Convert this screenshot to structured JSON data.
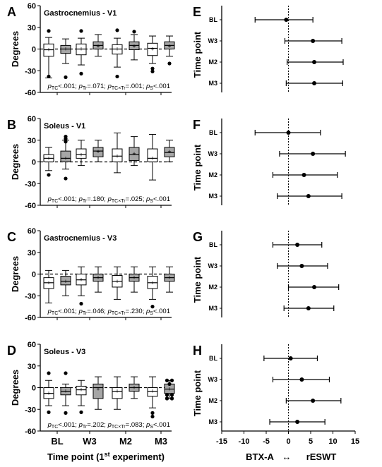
{
  "chart_data": [
    {
      "panel": "A",
      "title": "Gastrocnemius - V1",
      "type": "boxplot",
      "ylabel": "Degrees",
      "ylim": [
        -60,
        60
      ],
      "yticks": [
        60,
        30,
        0,
        -30,
        -60
      ],
      "categories": [
        "BL",
        "W3",
        "M2",
        "M3"
      ],
      "series": [
        {
          "fill": "#ffffff",
          "boxes": [
            {
              "min": -40,
              "q1": -10,
              "median": -1,
              "q3": 7,
              "max": 16,
              "mean": -1,
              "outliers": [
                25,
                -38
              ]
            },
            {
              "min": -22,
              "q1": -8,
              "median": 0,
              "q3": 7,
              "max": 15,
              "mean": 0,
              "outliers": [
                25,
                -34
              ]
            },
            {
              "min": -25,
              "q1": -7,
              "median": 0,
              "q3": 6,
              "max": 15,
              "mean": 0,
              "outliers": [
                26,
                -38
              ]
            },
            {
              "min": -20,
              "q1": -9,
              "median": 1,
              "q3": 8,
              "max": 18,
              "mean": 0,
              "outliers": [
                -27,
                -31
              ]
            }
          ]
        },
        {
          "fill": "#a6a6a6",
          "boxes": [
            {
              "min": -20,
              "q1": -6,
              "median": 0,
              "q3": 5,
              "max": 14,
              "mean": 0,
              "outliers": [
                -39
              ]
            },
            {
              "min": -10,
              "q1": 0,
              "median": 5,
              "q3": 10,
              "max": 20,
              "mean": 4,
              "outliers": []
            },
            {
              "min": -15,
              "q1": -1,
              "median": 5,
              "q3": 10,
              "max": 20,
              "mean": 4,
              "outliers": [
                24
              ]
            },
            {
              "min": -10,
              "q1": 0,
              "median": 5,
              "q3": 10,
              "max": 18,
              "mean": 4,
              "outliers": [
                -20
              ]
            }
          ]
        }
      ],
      "stats": [
        {
          "p": "p",
          "s": "TC",
          "t": "<.001; "
        },
        {
          "p": "p",
          "s": "Tr",
          "t": "=.071; "
        },
        {
          "p": "p",
          "s": "TC×Tr",
          "t": "=.001; "
        },
        {
          "p": "p",
          "s": "S",
          "t": "<.001"
        }
      ]
    },
    {
      "panel": "B",
      "title": "Soleus - V1",
      "type": "boxplot",
      "ylabel": "Degrees",
      "ylim": [
        -60,
        60
      ],
      "yticks": [
        60,
        30,
        0,
        -30,
        -60
      ],
      "categories": [
        "BL",
        "W3",
        "M2",
        "M3"
      ],
      "series": [
        {
          "fill": "#ffffff",
          "boxes": [
            {
              "min": -12,
              "q1": 0,
              "median": 5,
              "q3": 10,
              "max": 20,
              "mean": 5,
              "outliers": [
                -18
              ]
            },
            {
              "min": -5,
              "q1": 5,
              "median": 10,
              "q3": 18,
              "max": 30,
              "mean": 10,
              "outliers": []
            },
            {
              "min": -15,
              "q1": 0,
              "median": 8,
              "q3": 18,
              "max": 40,
              "mean": 8,
              "outliers": []
            },
            {
              "min": -25,
              "q1": 0,
              "median": 5,
              "q3": 18,
              "max": 38,
              "mean": 5,
              "outliers": []
            }
          ]
        },
        {
          "fill": "#a6a6a6",
          "boxes": [
            {
              "min": -10,
              "q1": 0,
              "median": 5,
              "q3": 15,
              "max": 30,
              "mean": 5,
              "outliers": [
                35,
                32,
                28,
                -23
              ]
            },
            {
              "min": 0,
              "q1": 7,
              "median": 15,
              "q3": 20,
              "max": 30,
              "mean": 14,
              "outliers": []
            },
            {
              "min": -5,
              "q1": 2,
              "median": 10,
              "q3": 20,
              "max": 35,
              "mean": 11,
              "outliers": []
            },
            {
              "min": 0,
              "q1": 7,
              "median": 13,
              "q3": 20,
              "max": 30,
              "mean": 14,
              "outliers": []
            }
          ]
        }
      ],
      "stats": [
        {
          "p": "p",
          "s": "TC",
          "t": "<.001; "
        },
        {
          "p": "p",
          "s": "Tr",
          "t": "=.180; "
        },
        {
          "p": "p",
          "s": "TC×Tr",
          "t": "=.025; "
        },
        {
          "p": "p",
          "s": "S",
          "t": "<.001"
        }
      ]
    },
    {
      "panel": "C",
      "title": "Gastrocnemius - V3",
      "type": "boxplot",
      "ylabel": "Degrees",
      "ylim": [
        -60,
        60
      ],
      "yticks": [
        60,
        30,
        0,
        -30,
        -60
      ],
      "categories": [
        "BL",
        "W3",
        "M2",
        "M3"
      ],
      "series": [
        {
          "fill": "#ffffff",
          "boxes": [
            {
              "min": -40,
              "q1": -20,
              "median": -12,
              "q3": -5,
              "max": 5,
              "mean": -12,
              "outliers": []
            },
            {
              "min": -30,
              "q1": -15,
              "median": -8,
              "q3": 0,
              "max": 10,
              "mean": -8,
              "outliers": [
                -41
              ]
            },
            {
              "min": -35,
              "q1": -18,
              "median": -10,
              "q3": -2,
              "max": 10,
              "mean": -10,
              "outliers": []
            },
            {
              "min": -35,
              "q1": -20,
              "median": -12,
              "q3": -3,
              "max": 10,
              "mean": -12,
              "outliers": [
                -45
              ]
            }
          ]
        },
        {
          "fill": "#a6a6a6",
          "boxes": [
            {
              "min": -30,
              "q1": -15,
              "median": -10,
              "q3": -3,
              "max": 5,
              "mean": -10,
              "outliers": []
            },
            {
              "min": -25,
              "q1": -10,
              "median": -5,
              "q3": 0,
              "max": 10,
              "mean": -5,
              "outliers": []
            },
            {
              "min": -25,
              "q1": -10,
              "median": -5,
              "q3": 0,
              "max": 10,
              "mean": -5,
              "outliers": []
            },
            {
              "min": -25,
              "q1": -10,
              "median": -5,
              "q3": 0,
              "max": 10,
              "mean": -5,
              "outliers": []
            }
          ]
        }
      ],
      "stats": [
        {
          "p": "p",
          "s": "TC",
          "t": "<.001; "
        },
        {
          "p": "p",
          "s": "Tr",
          "t": "=.046; "
        },
        {
          "p": "p",
          "s": "TC×Tr",
          "t": "=.230; "
        },
        {
          "p": "p",
          "s": "S",
          "t": "<.001"
        }
      ]
    },
    {
      "panel": "D",
      "title": "Soleus - V3",
      "type": "boxplot",
      "ylabel": "Degrees",
      "ylim": [
        -60,
        60
      ],
      "yticks": [
        60,
        30,
        0,
        -30,
        -60
      ],
      "categories": [
        "BL",
        "W3",
        "M2",
        "M3"
      ],
      "xlabel_pre": "Time point (1",
      "xlabel_sup": "st",
      "xlabel_post": " experiment)",
      "series": [
        {
          "fill": "#ffffff",
          "boxes": [
            {
              "min": -25,
              "q1": -15,
              "median": -8,
              "q3": 0,
              "max": 10,
              "mean": -8,
              "outliers": [
                20,
                -34
              ]
            },
            {
              "min": -25,
              "q1": -10,
              "median": -3,
              "q3": 2,
              "max": 10,
              "mean": -3,
              "outliers": [
                -34
              ]
            },
            {
              "min": -30,
              "q1": -15,
              "median": -5,
              "q3": 0,
              "max": 15,
              "mean": -5,
              "outliers": []
            },
            {
              "min": -28,
              "q1": -12,
              "median": -5,
              "q3": 0,
              "max": 15,
              "mean": -5,
              "outliers": [
                -35,
                -40
              ]
            }
          ]
        },
        {
          "fill": "#a6a6a6",
          "boxes": [
            {
              "min": -25,
              "q1": -10,
              "median": -5,
              "q3": 0,
              "max": 5,
              "mean": -5,
              "outliers": [
                20,
                -35
              ]
            },
            {
              "min": -30,
              "q1": -15,
              "median": 0,
              "q3": 5,
              "max": 15,
              "mean": -2,
              "outliers": []
            },
            {
              "min": -15,
              "q1": -5,
              "median": 0,
              "q3": 5,
              "max": 15,
              "mean": 0,
              "outliers": []
            },
            {
              "min": -15,
              "q1": -8,
              "median": -2,
              "q3": 5,
              "max": 10,
              "mean": -2,
              "outliers": [
                10,
                10,
                5,
                -10,
                -10,
                -15,
                -15,
                -15,
                -15
              ]
            }
          ]
        }
      ],
      "stats": [
        {
          "p": "p",
          "s": "TC",
          "t": "<.001; "
        },
        {
          "p": "p",
          "s": "Tr",
          "t": "=.202; "
        },
        {
          "p": "p",
          "s": "TC×Tr",
          "t": "=.083; "
        },
        {
          "p": "p",
          "s": "S",
          "t": "<.001"
        }
      ]
    },
    {
      "panel": "E",
      "type": "forest",
      "ylabel": "Time point",
      "rows": [
        "BL",
        "W3",
        "M2",
        "M3"
      ],
      "estimates": [
        -0.5,
        5.5,
        5.8,
        5.8
      ],
      "ci_low": [
        -7.5,
        -0.8,
        -0.3,
        -0.5
      ],
      "ci_high": [
        5.5,
        12,
        12.3,
        12.2
      ]
    },
    {
      "panel": "F",
      "type": "forest",
      "ylabel": "Time point",
      "rows": [
        "BL",
        "W3",
        "M2",
        "M3"
      ],
      "estimates": [
        0,
        5.5,
        3.5,
        4.5
      ],
      "ci_low": [
        -7.5,
        -2,
        -3.5,
        -2.5
      ],
      "ci_high": [
        7.2,
        12.8,
        11,
        12
      ]
    },
    {
      "panel": "G",
      "type": "forest",
      "ylabel": "Time point",
      "rows": [
        "BL",
        "W3",
        "M2",
        "M3"
      ],
      "estimates": [
        2,
        3,
        5.8,
        4.5
      ],
      "ci_low": [
        -3.5,
        -2.5,
        0,
        -1
      ],
      "ci_high": [
        7.5,
        8.8,
        11.3,
        10.2
      ]
    },
    {
      "panel": "H",
      "type": "forest",
      "ylabel": "Time point",
      "rows": [
        "BL",
        "W3",
        "M2",
        "M3"
      ],
      "estimates": [
        0.5,
        3,
        5.5,
        2
      ],
      "ci_low": [
        -5.5,
        -3.5,
        -0.5,
        -4.2
      ],
      "ci_high": [
        6.5,
        9.2,
        11.8,
        8.2
      ],
      "xlim": [
        -15,
        15
      ],
      "xticks": [
        -15,
        -10,
        -5,
        0,
        5,
        10,
        15
      ],
      "xlabel_left": "BTX-A",
      "xlabel_arrow": "↔",
      "xlabel_right": "rESWT"
    }
  ]
}
